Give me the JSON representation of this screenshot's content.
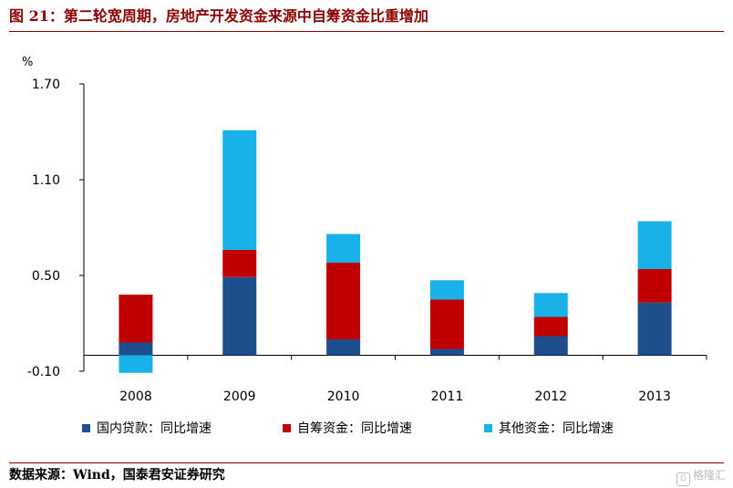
{
  "header": {
    "title": "图 21：第二轮宽周期，房地产开发资金来源中自筹资金比重增加"
  },
  "source": {
    "text": "数据来源：Wind，国泰君安证券研究"
  },
  "watermark": {
    "text": "格隆汇"
  },
  "chart_data": {
    "type": "bar",
    "stacked": true,
    "unit": "%",
    "categories": [
      "2008",
      "2009",
      "2010",
      "2011",
      "2012",
      "2013"
    ],
    "yticks": [
      "1.70",
      "1.10",
      "0.50",
      "-0.10"
    ],
    "ylim": [
      -0.1,
      1.7
    ],
    "grid": false,
    "legend_position": "bottom",
    "series": [
      {
        "name": "国内贷款：同比增速",
        "color": "#1f4e8c",
        "values": [
          0.08,
          0.49,
          0.1,
          0.04,
          0.12,
          0.33
        ]
      },
      {
        "name": "自筹资金：同比增速",
        "color": "#c00000",
        "values": [
          0.3,
          0.17,
          0.48,
          0.31,
          0.12,
          0.21
        ]
      },
      {
        "name": "其他资金：同比增速",
        "color": "#19b2e8",
        "values": [
          -0.11,
          0.75,
          0.18,
          0.12,
          0.15,
          0.3
        ]
      }
    ]
  }
}
